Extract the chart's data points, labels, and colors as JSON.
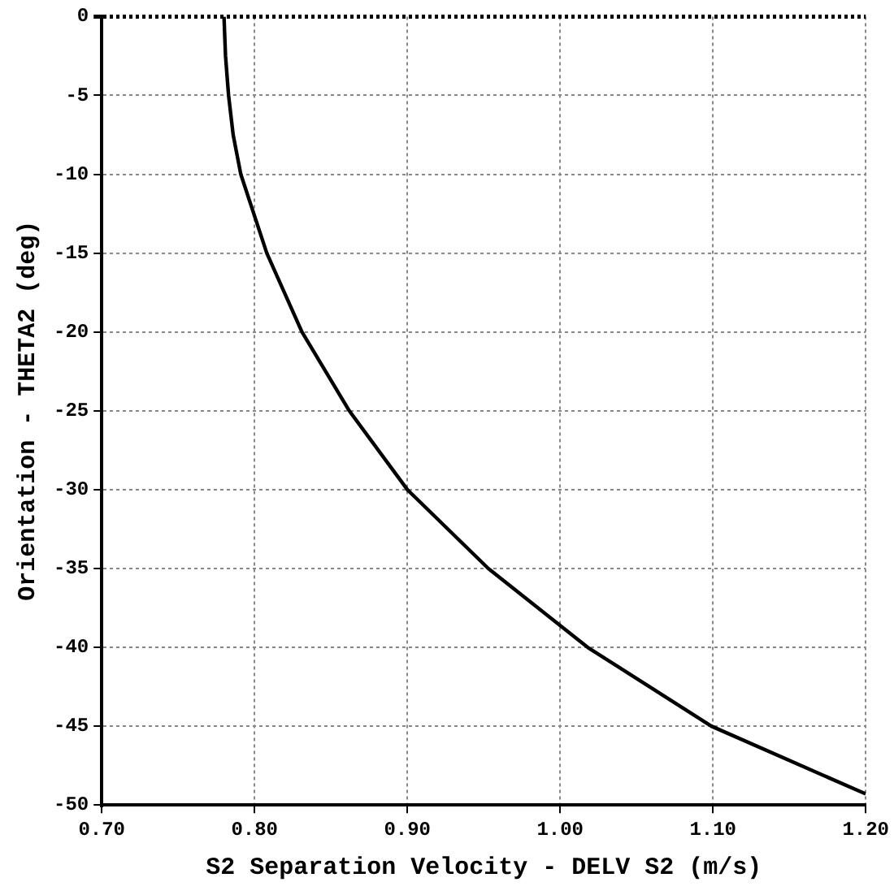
{
  "chart_data": {
    "type": "line",
    "xlabel": "S2 Separation Velocity - DELV S2 (m/s)",
    "ylabel": "Orientation - THETA2 (deg)",
    "series": [
      {
        "color": "#000000",
        "x": [
          0.78,
          0.781,
          0.783,
          0.786,
          0.791,
          0.808,
          0.831,
          0.862,
          0.9,
          0.953,
          1.018,
          1.099,
          1.2
        ],
        "values": [
          0,
          -2.5,
          -5,
          -7.5,
          -10,
          -15,
          -20,
          -25,
          -30,
          -35,
          -40,
          -45,
          -49.3
        ]
      }
    ],
    "xlim": [
      0.7,
      1.2
    ],
    "xticks": [
      {
        "value": 0.7,
        "label": "0.70"
      },
      {
        "value": 0.8,
        "label": "0.80"
      },
      {
        "value": 0.9,
        "label": "0.90"
      },
      {
        "value": 1.0,
        "label": "1.00"
      },
      {
        "value": 1.1,
        "label": "1.10"
      },
      {
        "value": 1.2,
        "label": "1.20"
      }
    ],
    "ylim": [
      -50,
      0
    ],
    "yticks": [
      0,
      -5,
      -10,
      -15,
      -20,
      -25,
      -30,
      -35,
      -40,
      -45,
      -50
    ],
    "grid": true,
    "legend": false,
    "marker": "none",
    "line_style": "solid"
  }
}
